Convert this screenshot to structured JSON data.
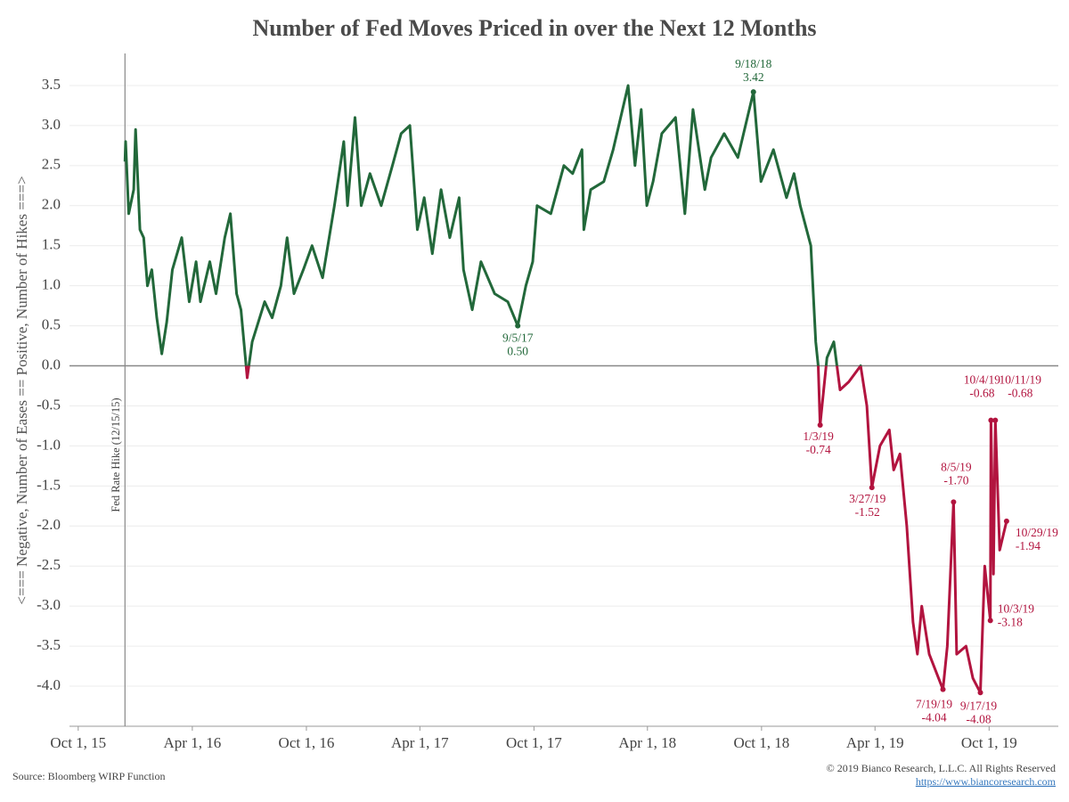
{
  "chart_data": {
    "type": "line",
    "title": "Number of Fed Moves Priced in over the Next 12 Months",
    "y_label": "<=== Negative, Number of Eases == Positive, Number of Hikes ===>",
    "source": "Source: Bloomberg WIRP Function",
    "copyright": "© 2019 Bianco Research, L.L.C. All Rights Reserved",
    "url": "https://www.biancoresearch.com",
    "color_positive": "#22683a",
    "color_negative": "#b2143f",
    "grid": true,
    "xlim": [
      "2015-09-17",
      "2020-01-20"
    ],
    "xticks": [
      {
        "value": "2015-10-01",
        "label": "Oct 1, 15"
      },
      {
        "value": "2016-04-01",
        "label": "Apr 1, 16"
      },
      {
        "value": "2016-10-01",
        "label": "Oct 1, 16"
      },
      {
        "value": "2017-04-01",
        "label": "Apr 1, 17"
      },
      {
        "value": "2017-10-01",
        "label": "Oct 1, 17"
      },
      {
        "value": "2018-04-01",
        "label": "Apr 1, 18"
      },
      {
        "value": "2018-10-01",
        "label": "Oct 1, 18"
      },
      {
        "value": "2019-04-01",
        "label": "Apr 1, 19"
      },
      {
        "value": "2019-10-01",
        "label": "Oct 1, 19"
      }
    ],
    "ylim": [
      -4.5,
      3.9
    ],
    "yticks": [
      {
        "value": -4,
        "label": "-4.0"
      },
      -3.5,
      {
        "value": -3,
        "label": "-3.0"
      },
      -2.5,
      {
        "value": -2,
        "label": "-2.0"
      },
      -1.5,
      {
        "value": -1,
        "label": "-1.0"
      },
      -0.5,
      {
        "value": 0,
        "label": "0.0"
      },
      0.5,
      {
        "value": 1,
        "label": "1.0"
      },
      1.5,
      {
        "value": 2,
        "label": "2.0"
      },
      2.5,
      {
        "value": 3,
        "label": "3.0"
      },
      3.5
    ],
    "vline": {
      "x": "2015-12-15",
      "label": "Fed Rate Hike (12/15/15)"
    },
    "x": [
      "2015-12-15",
      "2015-12-16",
      "2015-12-21",
      "2015-12-29",
      "2016-01-01",
      "2016-01-08",
      "2016-01-14",
      "2016-01-20",
      "2016-01-27",
      "2016-02-04",
      "2016-02-12",
      "2016-02-20",
      "2016-02-29",
      "2016-03-15",
      "2016-03-27",
      "2016-04-07",
      "2016-04-14",
      "2016-04-29",
      "2016-05-09",
      "2016-05-23",
      "2016-06-01",
      "2016-06-11",
      "2016-06-18",
      "2016-06-28",
      "2016-07-06",
      "2016-07-26",
      "2016-08-07",
      "2016-08-21",
      "2016-08-31",
      "2016-09-11",
      "2016-09-26",
      "2016-10-10",
      "2016-10-27",
      "2016-11-15",
      "2016-11-30",
      "2016-12-06",
      "2016-12-18",
      "2016-12-28",
      "2017-01-11",
      "2017-01-29",
      "2017-02-16",
      "2017-03-02",
      "2017-03-16",
      "2017-03-28",
      "2017-04-08",
      "2017-04-21",
      "2017-05-05",
      "2017-05-19",
      "2017-06-03",
      "2017-06-10",
      "2017-06-24",
      "2017-07-08",
      "2017-07-30",
      "2017-08-20",
      "2017-09-05",
      "2017-09-18",
      "2017-09-29",
      "2017-10-06",
      "2017-10-28",
      "2017-11-18",
      "2017-12-02",
      "2017-12-17",
      "2017-12-20",
      "2017-12-31",
      "2018-01-21",
      "2018-02-05",
      "2018-03-01",
      "2018-03-12",
      "2018-03-22",
      "2018-03-31",
      "2018-04-10",
      "2018-04-24",
      "2018-05-16",
      "2018-05-31",
      "2018-06-13",
      "2018-07-02",
      "2018-07-12",
      "2018-08-02",
      "2018-08-24",
      "2018-09-18",
      "2018-09-30",
      "2018-10-20",
      "2018-11-10",
      "2018-11-22",
      "2018-12-02",
      "2018-12-19",
      "2018-12-27",
      "2018-12-31",
      "2019-01-03",
      "2019-01-14",
      "2019-01-25",
      "2019-02-04",
      "2019-02-18",
      "2019-03-09",
      "2019-03-19",
      "2019-03-27",
      "2019-04-09",
      "2019-04-24",
      "2019-05-01",
      "2019-05-11",
      "2019-05-22",
      "2019-06-01",
      "2019-06-08",
      "2019-06-15",
      "2019-06-27",
      "2019-07-19",
      "2019-07-26",
      "2019-08-05",
      "2019-08-10",
      "2019-08-25",
      "2019-09-05",
      "2019-09-17",
      "2019-09-24",
      "2019-10-03",
      "2019-10-04",
      "2019-10-08",
      "2019-10-11",
      "2019-10-18",
      "2019-10-29"
    ],
    "values": [
      2.55,
      2.8,
      1.9,
      2.2,
      2.95,
      1.7,
      1.6,
      1.0,
      1.2,
      0.6,
      0.15,
      0.55,
      1.2,
      1.6,
      0.8,
      1.3,
      0.8,
      1.3,
      0.9,
      1.6,
      1.9,
      0.9,
      0.7,
      -0.15,
      0.3,
      0.8,
      0.6,
      1.0,
      1.6,
      0.9,
      1.2,
      1.5,
      1.1,
      2.0,
      2.8,
      2.0,
      3.1,
      2.0,
      2.4,
      2.0,
      2.5,
      2.9,
      3.0,
      1.7,
      2.1,
      1.4,
      2.2,
      1.6,
      2.1,
      1.2,
      0.7,
      1.3,
      0.9,
      0.8,
      0.5,
      1.0,
      1.3,
      2.0,
      1.9,
      2.5,
      2.4,
      2.7,
      1.7,
      2.2,
      2.3,
      2.7,
      3.5,
      2.5,
      3.2,
      2.0,
      2.3,
      2.9,
      3.1,
      1.9,
      3.2,
      2.2,
      2.6,
      2.9,
      2.6,
      3.42,
      2.3,
      2.7,
      2.1,
      2.4,
      2.0,
      1.5,
      0.3,
      0.0,
      -0.74,
      0.1,
      0.3,
      -0.3,
      -0.2,
      0.0,
      -0.5,
      -1.52,
      -1.0,
      -0.8,
      -1.3,
      -1.1,
      -2.0,
      -3.2,
      -3.6,
      -3.0,
      -3.6,
      -4.04,
      -3.5,
      -1.7,
      -3.6,
      -3.5,
      -3.9,
      -4.08,
      -2.5,
      -3.18,
      -0.68,
      -2.6,
      -0.68,
      -2.3,
      -1.94
    ],
    "annotations": [
      {
        "date": "9/18/18",
        "value": 3.42,
        "value_label": "3.42"
      },
      {
        "date": "9/5/17",
        "value": 0.5,
        "value_label": "0.50"
      },
      {
        "date": "1/3/19",
        "value": -0.74,
        "value_label": "-0.74"
      },
      {
        "date": "3/27/19",
        "value": -1.52,
        "value_label": "-1.52"
      },
      {
        "date": "8/5/19",
        "value": -1.7,
        "value_label": "-1.70"
      },
      {
        "date": "10/4/19",
        "value": -0.68,
        "value_label": "-0.68"
      },
      {
        "date": "10/11/19",
        "value": -0.68,
        "value_label": "-0.68"
      },
      {
        "date": "10/29/19",
        "value": -1.94,
        "value_label": "-1.94"
      },
      {
        "date": "10/3/19",
        "value": -3.18,
        "value_label": "-3.18"
      },
      {
        "date": "7/19/19",
        "value": -4.04,
        "value_label": "-4.04"
      },
      {
        "date": "9/17/19",
        "value": -4.08,
        "value_label": "-4.08"
      }
    ]
  }
}
